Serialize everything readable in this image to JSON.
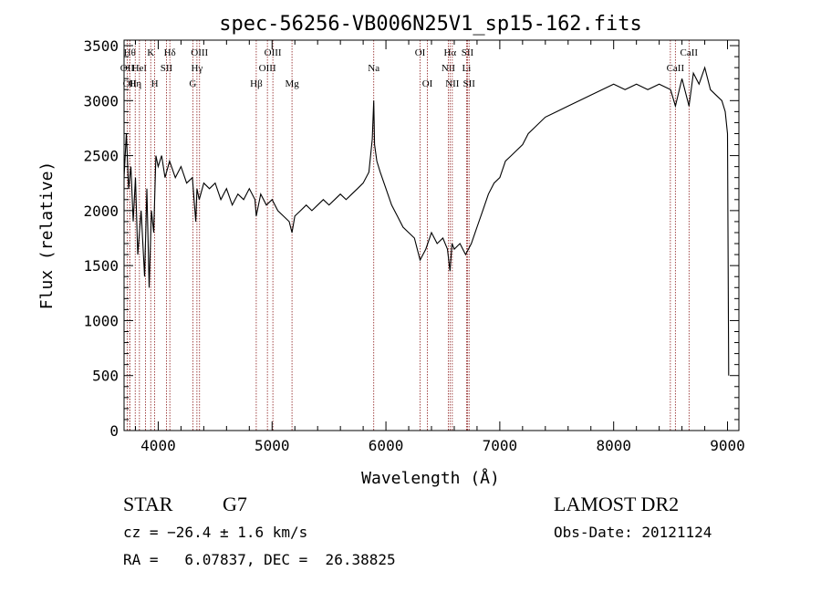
{
  "chart_data": {
    "type": "line",
    "title": "spec-56256-VB006N25V1_sp15-162.fits",
    "xlabel": "Wavelength (Å)",
    "ylabel": "Flux (relative)",
    "xlim": [
      3700,
      9100
    ],
    "ylim": [
      0,
      3550
    ],
    "x_ticks": [
      4000,
      5000,
      6000,
      7000,
      8000,
      9000
    ],
    "y_ticks": [
      0,
      500,
      1000,
      1500,
      2000,
      2500,
      3000,
      3500
    ],
    "grid": false,
    "legend": "none",
    "line_color": "#000000",
    "marker_color": "#8b1a1a",
    "series": [
      {
        "x": [
          3700,
          3720,
          3740,
          3760,
          3780,
          3800,
          3820,
          3850,
          3880,
          3900,
          3920,
          3940,
          3960,
          3980,
          4000,
          4030,
          4060,
          4100,
          4150,
          4200,
          4250,
          4300,
          4330,
          4340,
          4360,
          4400,
          4450,
          4500,
          4550,
          4600,
          4650,
          4700,
          4750,
          4800,
          4850,
          4861,
          4900,
          4950,
          5000,
          5050,
          5100,
          5150,
          5175,
          5200,
          5250,
          5300,
          5350,
          5400,
          5450,
          5500,
          5550,
          5600,
          5650,
          5700,
          5750,
          5800,
          5850,
          5880,
          5893,
          5900,
          5920,
          5950,
          6000,
          6050,
          6100,
          6150,
          6200,
          6250,
          6300,
          6350,
          6400,
          6450,
          6500,
          6540,
          6563,
          6580,
          6600,
          6650,
          6700,
          6750,
          6800,
          6850,
          6900,
          6950,
          7000,
          7050,
          7100,
          7150,
          7200,
          7250,
          7300,
          7400,
          7500,
          7600,
          7700,
          7800,
          7900,
          8000,
          8100,
          8200,
          8300,
          8400,
          8500,
          8542,
          8600,
          8662,
          8700,
          8750,
          8800,
          8850,
          8900,
          8950,
          8980,
          9000,
          9010
        ],
        "y": [
          2300,
          2700,
          2200,
          2400,
          1900,
          2300,
          1600,
          2000,
          1400,
          2200,
          1300,
          2000,
          1800,
          2500,
          2400,
          2500,
          2300,
          2450,
          2300,
          2400,
          2250,
          2300,
          1900,
          2200,
          2100,
          2250,
          2200,
          2250,
          2100,
          2200,
          2050,
          2150,
          2100,
          2200,
          2100,
          1950,
          2150,
          2050,
          2100,
          2000,
          1950,
          1900,
          1800,
          1950,
          2000,
          2050,
          2000,
          2050,
          2100,
          2050,
          2100,
          2150,
          2100,
          2150,
          2200,
          2250,
          2350,
          2650,
          3000,
          2600,
          2450,
          2350,
          2200,
          2050,
          1950,
          1850,
          1800,
          1750,
          1550,
          1650,
          1800,
          1700,
          1750,
          1650,
          1450,
          1700,
          1650,
          1700,
          1600,
          1700,
          1850,
          2000,
          2150,
          2250,
          2300,
          2450,
          2500,
          2550,
          2600,
          2700,
          2750,
          2850,
          2900,
          2950,
          3000,
          3050,
          3100,
          3150,
          3100,
          3150,
          3100,
          3150,
          3100,
          2950,
          3200,
          2950,
          3250,
          3150,
          3300,
          3100,
          3050,
          3000,
          2900,
          2700,
          500
        ]
      }
    ],
    "lines": [
      {
        "x": 3750,
        "label": "Hθ",
        "row": 0
      },
      {
        "x": 3727,
        "label": "OII",
        "row": 1
      },
      {
        "x": 3750,
        "label": "OII",
        "row": 2
      },
      {
        "x": 3798,
        "label": "Hη",
        "row": 2
      },
      {
        "x": 3835,
        "label": "HeI",
        "row": 1
      },
      {
        "x": 3889,
        "label": "",
        "row": 0
      },
      {
        "x": 3934,
        "label": "K",
        "row": 0
      },
      {
        "x": 3969,
        "label": "H",
        "row": 2
      },
      {
        "x": 4072,
        "label": "SII",
        "row": 1
      },
      {
        "x": 4102,
        "label": "Hδ",
        "row": 0
      },
      {
        "x": 4304,
        "label": "G",
        "row": 2
      },
      {
        "x": 4340,
        "label": "Hγ",
        "row": 1
      },
      {
        "x": 4363,
        "label": "OIII",
        "row": 0
      },
      {
        "x": 4861,
        "label": "Hβ",
        "row": 2
      },
      {
        "x": 4959,
        "label": "OIII",
        "row": 1
      },
      {
        "x": 5007,
        "label": "OIII",
        "row": 0
      },
      {
        "x": 5175,
        "label": "Mg",
        "row": 2
      },
      {
        "x": 5893,
        "label": "Na",
        "row": 1
      },
      {
        "x": 6300,
        "label": "OI",
        "row": 0
      },
      {
        "x": 6364,
        "label": "OI",
        "row": 2
      },
      {
        "x": 6548,
        "label": "NII",
        "row": 1
      },
      {
        "x": 6563,
        "label": "Hα",
        "row": 0
      },
      {
        "x": 6583,
        "label": "NII",
        "row": 2
      },
      {
        "x": 6708,
        "label": "Li",
        "row": 1
      },
      {
        "x": 6716,
        "label": "SII",
        "row": 0
      },
      {
        "x": 6730,
        "label": "SII",
        "row": 2
      },
      {
        "x": 8498,
        "label": "",
        "row": 0
      },
      {
        "x": 8542,
        "label": "CaII",
        "row": 1
      },
      {
        "x": 8662,
        "label": "CaII",
        "row": 0
      }
    ]
  },
  "info": {
    "object_class": "STAR",
    "subclass": "G7",
    "survey": "LAMOST DR2",
    "cz": "cz = −26.4 ± 1.6 km/s",
    "obs_date": "Obs-Date: 20121124",
    "coords": "RA =   6.07837, DEC =  26.38825"
  }
}
